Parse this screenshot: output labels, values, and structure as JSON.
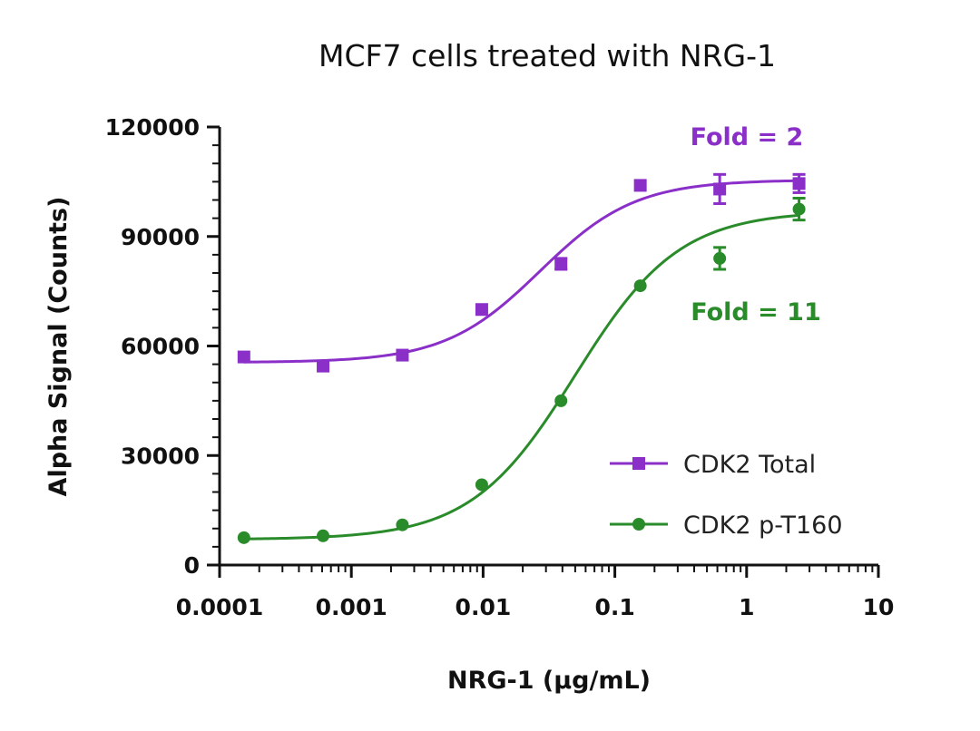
{
  "chart_data": {
    "type": "scatter",
    "title": "MCF7 cells treated with NRG-1",
    "xlabel": "NRG-1 (µg/mL)",
    "ylabel": "Alpha Signal (Counts)",
    "x_scale": "log",
    "xlim": [
      0.0001,
      10
    ],
    "ylim": [
      0,
      120000
    ],
    "x_ticks": [
      {
        "value": 0.0001,
        "label": "0.0001"
      },
      {
        "value": 0.001,
        "label": "0.001"
      },
      {
        "value": 0.01,
        "label": "0.01"
      },
      {
        "value": 0.1,
        "label": "0.1"
      },
      {
        "value": 1,
        "label": "1"
      },
      {
        "value": 10,
        "label": "10"
      }
    ],
    "y_ticks": [
      {
        "value": 0,
        "label": "0"
      },
      {
        "value": 30000,
        "label": "30000"
      },
      {
        "value": 60000,
        "label": "60000"
      },
      {
        "value": 90000,
        "label": "90000"
      },
      {
        "value": 120000,
        "label": "120000"
      }
    ],
    "grid": false,
    "legend_position": "bottom-right",
    "series": [
      {
        "name": "CDK2 Total",
        "color": "#8B2FC9",
        "marker": "square",
        "x": [
          0.000153,
          0.00061,
          0.00244,
          0.00977,
          0.039,
          0.156,
          0.625,
          2.5
        ],
        "y": [
          57000,
          54500,
          57500,
          70000,
          82500,
          104000,
          103000,
          104500
        ],
        "error": [
          0,
          0,
          0,
          0,
          1500,
          0,
          4000,
          2500
        ],
        "fit": {
          "bottom": 55500,
          "top": 105500,
          "ec50": 0.027,
          "hill": 1.2
        }
      },
      {
        "name": "CDK2 p-T160",
        "color": "#2A8B2A",
        "marker": "circle",
        "x": [
          0.000153,
          0.00061,
          0.00244,
          0.00977,
          0.039,
          0.156,
          0.625,
          2.5
        ],
        "y": [
          7500,
          8000,
          11000,
          22000,
          45000,
          76500,
          84000,
          97500
        ],
        "error": [
          0,
          0,
          0,
          0,
          0,
          0,
          3000,
          3000
        ],
        "fit": {
          "bottom": 7000,
          "top": 97000,
          "ec50": 0.05,
          "hill": 1.1
        }
      }
    ],
    "annotations": [
      {
        "text": "Fold = 2",
        "color": "#8B2FC9"
      },
      {
        "text": "Fold = 11",
        "color": "#2A8B2A"
      }
    ]
  }
}
